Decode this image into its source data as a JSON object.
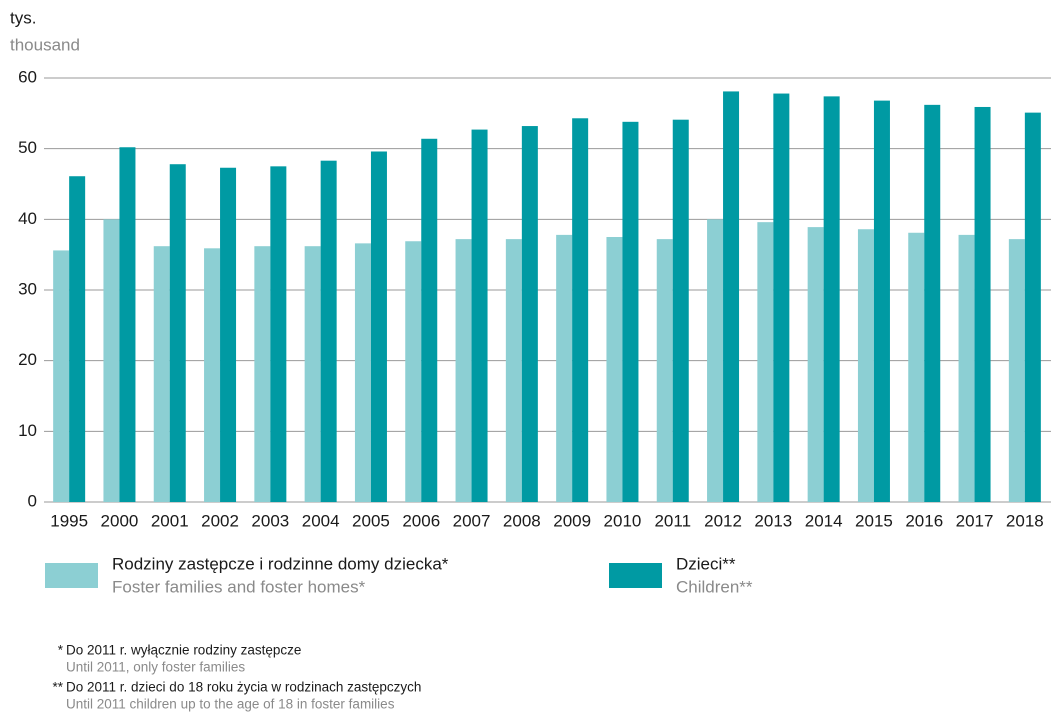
{
  "chart_data": {
    "type": "bar",
    "unit": "tys.",
    "unit_en": "thousand",
    "categories": [
      "1995",
      "2000",
      "2001",
      "2002",
      "2003",
      "2004",
      "2005",
      "2006",
      "2007",
      "2008",
      "2009",
      "2010",
      "2011",
      "2012",
      "2013",
      "2014",
      "2015",
      "2016",
      "2017",
      "2018"
    ],
    "series": [
      {
        "name": "Rodziny zastępcze i rodzinne domy dziecka*",
        "name_en": "Foster families and foster homes*",
        "color": "#8ccfd3",
        "values": [
          35.6,
          40.0,
          36.2,
          35.9,
          36.2,
          36.2,
          36.6,
          36.9,
          37.2,
          37.2,
          37.8,
          37.5,
          37.2,
          40.0,
          39.6,
          38.9,
          38.6,
          38.1,
          37.8,
          37.2
        ]
      },
      {
        "name": "Dzieci**",
        "name_en": "Children**",
        "color": "#009aa3",
        "values": [
          46.1,
          50.2,
          47.8,
          47.3,
          47.5,
          48.3,
          49.6,
          51.4,
          52.7,
          53.2,
          54.3,
          53.8,
          54.1,
          58.1,
          57.8,
          57.4,
          56.8,
          56.2,
          55.9,
          55.1
        ]
      }
    ],
    "ylim": [
      0,
      60
    ],
    "yticks": [
      0,
      10,
      20,
      30,
      40,
      50,
      60
    ],
    "grid": true,
    "footnotes": [
      {
        "marker": "*",
        "text": "Do 2011 r. wyłącznie  rodziny zastępcze",
        "text_en": "Until 2011, only foster families"
      },
      {
        "marker": "**",
        "text": "Do 2011 r. dzieci do 18 roku życia w rodzinach zastępczych",
        "text_en": "Until 2011 children up to the age of 18 in foster families"
      }
    ]
  }
}
